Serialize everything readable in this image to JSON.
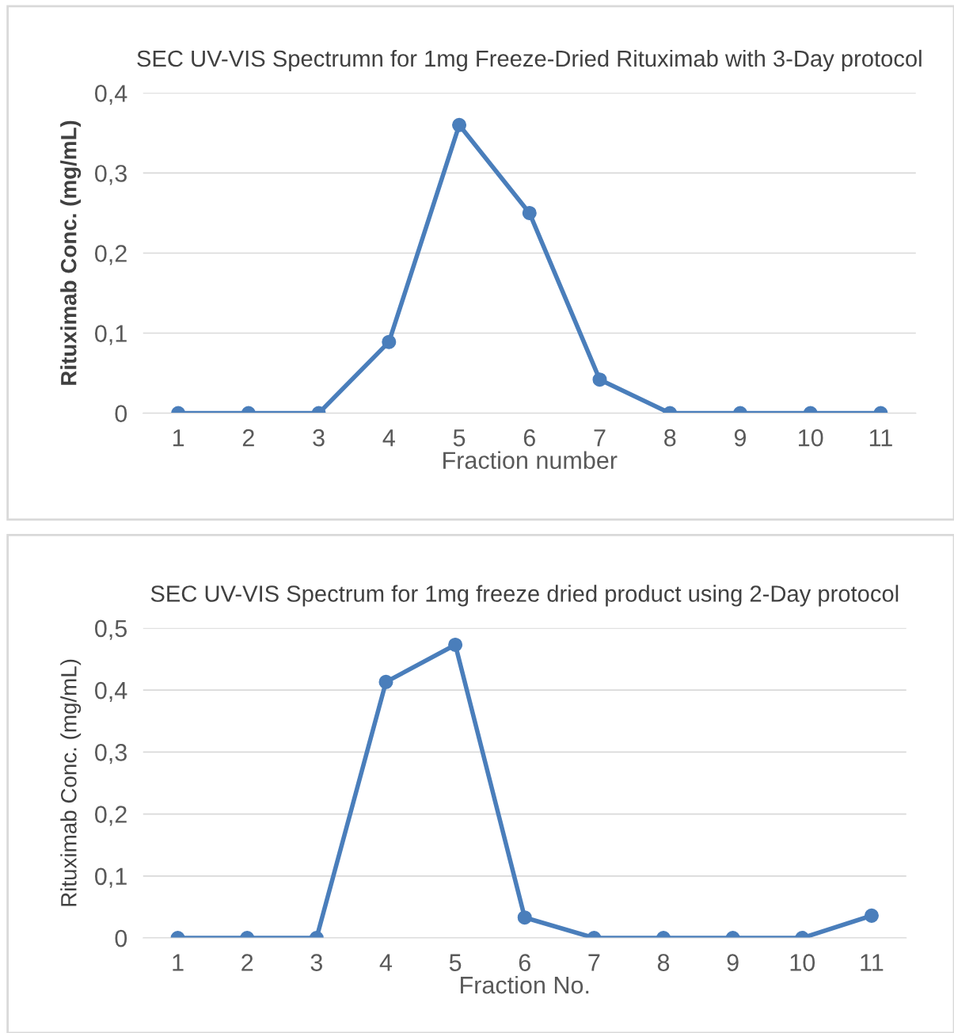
{
  "chart_data": [
    {
      "type": "line",
      "title": "SEC UV-VIS Spectrumn for 1mg Freeze-Dried Rituximab with 3-Day protocol",
      "xlabel": "Fraction number",
      "ylabel": "Rituximab Conc. (mg/mL)",
      "categories": [
        "1",
        "2",
        "3",
        "4",
        "5",
        "6",
        "7",
        "8",
        "9",
        "10",
        "11"
      ],
      "series": [
        {
          "color": "#4a7ebb",
          "values": [
            0,
            0,
            0,
            0.089,
            0.36,
            0.25,
            0.042,
            0,
            0,
            0,
            0
          ]
        }
      ],
      "ylim": [
        0,
        0.4
      ],
      "yticks": [
        {
          "value": 0,
          "label": "0"
        },
        {
          "value": 0.1,
          "label": "0,1"
        },
        {
          "value": 0.2,
          "label": "0,2"
        },
        {
          "value": 0.3,
          "label": "0,3"
        },
        {
          "value": 0.4,
          "label": "0,4"
        }
      ],
      "grid": "y",
      "legend": false,
      "marker": "circle",
      "line_style": "solid"
    },
    {
      "type": "line",
      "title": "SEC UV-VIS Spectrum for 1mg freeze dried product using 2-Day protocol",
      "xlabel": "Fraction No.",
      "ylabel": "Rituximab Conc. (mg/mL)",
      "categories": [
        "1",
        "2",
        "3",
        "4",
        "5",
        "6",
        "7",
        "8",
        "9",
        "10",
        "11"
      ],
      "series": [
        {
          "color": "#4a7ebb",
          "values": [
            0,
            0,
            0,
            0.413,
            0.473,
            0.033,
            0,
            0,
            0,
            0,
            0.036
          ]
        }
      ],
      "ylim": [
        0,
        0.5
      ],
      "yticks": [
        {
          "value": 0,
          "label": "0"
        },
        {
          "value": 0.1,
          "label": "0,1"
        },
        {
          "value": 0.2,
          "label": "0,2"
        },
        {
          "value": 0.3,
          "label": "0,3"
        },
        {
          "value": 0.4,
          "label": "0,4"
        },
        {
          "value": 0.5,
          "label": "0,5"
        }
      ],
      "grid": "y",
      "legend": false,
      "marker": "circle",
      "line_style": "solid"
    }
  ]
}
